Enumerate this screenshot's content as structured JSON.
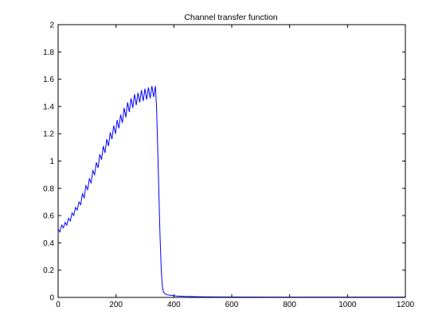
{
  "chart_data": {
    "type": "line",
    "title": "Channel transfer function",
    "xlabel": "",
    "ylabel": "",
    "xlim": [
      0,
      1200
    ],
    "ylim": [
      0,
      2
    ],
    "xticks": [
      0,
      200,
      400,
      600,
      800,
      1000,
      1200
    ],
    "xtick_labels": [
      "0",
      "200",
      "400",
      "600",
      "800",
      "1000",
      "1200"
    ],
    "yticks": [
      0,
      0.2,
      0.4,
      0.6,
      0.8,
      1,
      1.2,
      1.4,
      1.6,
      1.8,
      2
    ],
    "ytick_labels": [
      "0",
      "0.2",
      "0.4",
      "0.6",
      "0.8",
      "1",
      "1.2",
      "1.4",
      "1.6",
      "1.8",
      "2"
    ],
    "grid": false,
    "legend": "none",
    "line_color": "#0000ff",
    "series": [
      {
        "x": [
          0,
          6,
          12,
          18,
          24,
          30,
          36,
          42,
          48,
          54,
          60,
          66,
          72,
          78,
          84,
          90,
          96,
          102,
          108,
          114,
          120,
          126,
          132,
          138,
          144,
          150,
          156,
          162,
          168,
          174,
          180,
          186,
          192,
          198,
          204,
          210,
          216,
          222,
          228,
          234,
          240,
          246,
          252,
          258,
          264,
          270,
          276,
          282,
          288,
          294,
          300,
          306,
          312,
          318,
          324,
          330,
          336,
          340,
          344,
          348,
          352,
          356,
          360,
          364,
          368,
          375,
          390,
          410,
          440,
          480,
          600,
          800,
          1000,
          1200
        ],
        "y": [
          0.5,
          0.48,
          0.53,
          0.51,
          0.55,
          0.53,
          0.58,
          0.56,
          0.62,
          0.6,
          0.66,
          0.64,
          0.7,
          0.68,
          0.76,
          0.73,
          0.82,
          0.79,
          0.87,
          0.84,
          0.93,
          0.9,
          0.99,
          0.95,
          1.05,
          1.01,
          1.11,
          1.06,
          1.16,
          1.11,
          1.21,
          1.16,
          1.26,
          1.2,
          1.3,
          1.24,
          1.34,
          1.28,
          1.39,
          1.32,
          1.43,
          1.36,
          1.46,
          1.39,
          1.49,
          1.41,
          1.5,
          1.43,
          1.52,
          1.44,
          1.53,
          1.45,
          1.54,
          1.46,
          1.55,
          1.47,
          1.55,
          1.4,
          1.1,
          0.78,
          0.46,
          0.22,
          0.08,
          0.04,
          0.03,
          0.02,
          0.015,
          0.01,
          0.007,
          0.005,
          0.003,
          0.002,
          0.002,
          0.002
        ]
      }
    ]
  }
}
